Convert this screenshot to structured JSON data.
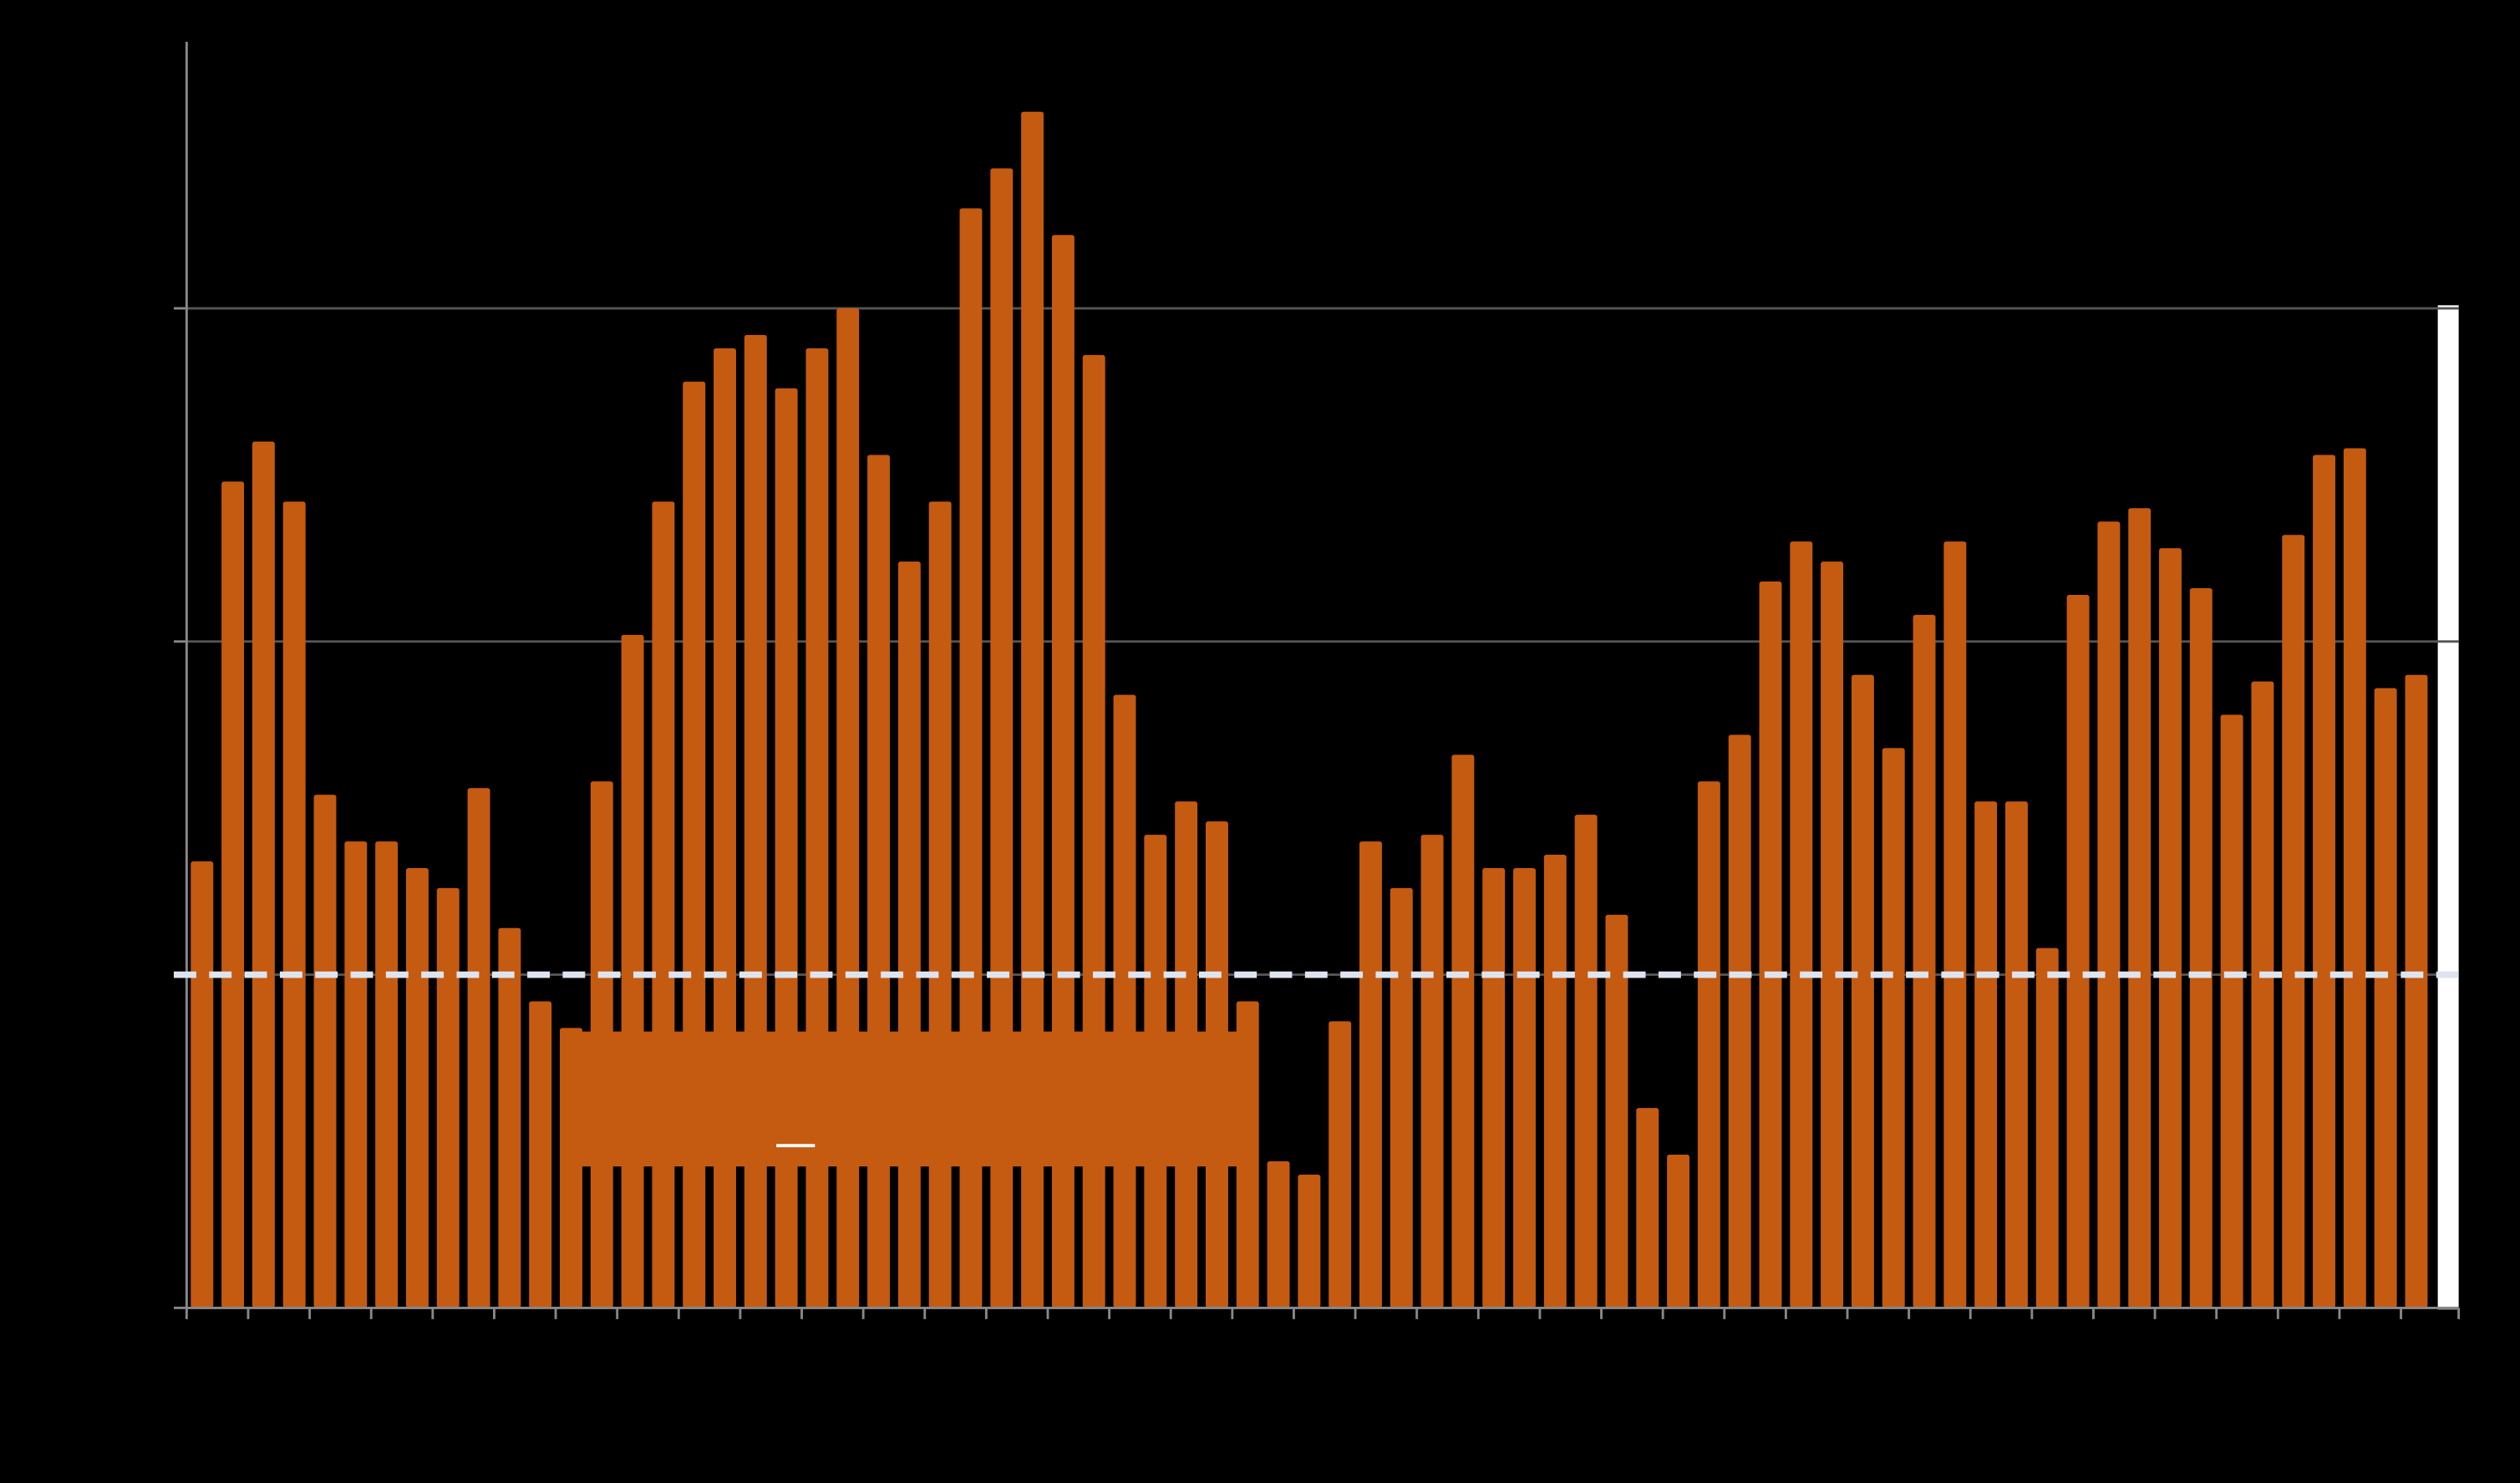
{
  "chart_data": {
    "type": "bar",
    "categories": [
      null,
      null,
      null,
      null,
      null,
      null,
      null,
      null,
      null,
      null,
      null,
      null,
      null,
      null,
      null,
      null,
      null,
      null,
      null,
      null,
      null,
      null,
      null,
      null,
      null,
      null,
      null,
      null,
      null,
      null,
      null,
      null,
      null,
      null,
      null,
      null,
      null,
      null,
      null,
      null,
      null,
      null,
      null,
      null,
      null,
      null,
      null,
      null,
      null,
      null,
      null,
      null,
      null,
      null,
      null,
      null,
      null,
      null,
      null,
      null,
      null,
      null,
      null,
      null,
      null,
      null,
      null,
      null,
      null,
      null,
      null,
      null,
      null
    ],
    "values": [
      1.34,
      2.48,
      2.6,
      2.42,
      1.54,
      1.4,
      1.4,
      1.32,
      1.26,
      1.56,
      1.14,
      0.92,
      0.84,
      1.58,
      2.02,
      2.42,
      2.78,
      2.88,
      2.92,
      2.76,
      2.88,
      3.0,
      2.56,
      2.24,
      2.42,
      3.3,
      3.42,
      3.59,
      3.22,
      2.86,
      1.84,
      1.42,
      1.52,
      1.46,
      0.92,
      0.44,
      0.4,
      0.86,
      1.4,
      1.26,
      1.42,
      1.66,
      1.32,
      1.32,
      1.36,
      1.48,
      1.18,
      0.6,
      0.46,
      1.58,
      1.72,
      2.18,
      2.3,
      2.24,
      1.9,
      1.68,
      2.08,
      2.3,
      1.52,
      1.52,
      1.08,
      2.14,
      2.36,
      2.4,
      2.28,
      2.16,
      1.78,
      1.88,
      2.32,
      2.56,
      2.58,
      1.86,
      1.9
    ],
    "color": "#c55a11",
    "ylim": [
      0,
      3.8
    ],
    "yticks": [
      0,
      1,
      2,
      3
    ],
    "grid": true,
    "reference_line": {
      "value": 1,
      "color": "#dde4ee"
    }
  }
}
